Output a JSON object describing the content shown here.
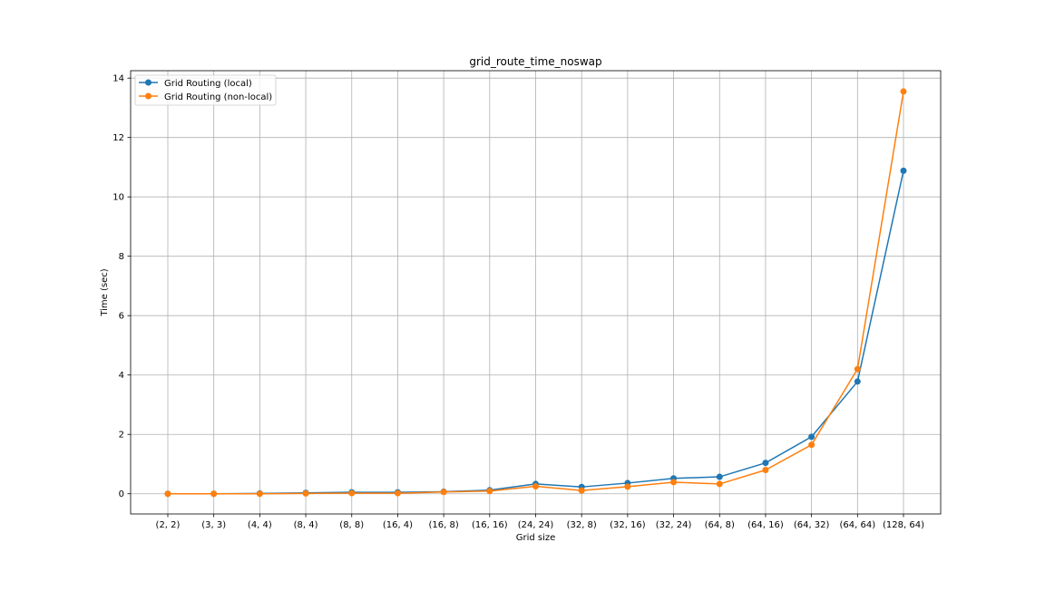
{
  "chart_data": {
    "type": "line",
    "title": "grid_route_time_noswap",
    "xlabel": "Grid size",
    "ylabel": "Time (sec)",
    "categories": [
      "(2, 2)",
      "(3, 3)",
      "(4, 4)",
      "(8, 4)",
      "(8, 8)",
      "(16, 4)",
      "(16, 8)",
      "(16, 16)",
      "(24, 24)",
      "(32, 8)",
      "(32, 16)",
      "(32, 24)",
      "(64, 8)",
      "(64, 16)",
      "(64, 32)",
      "(64, 64)",
      "(128, 64)"
    ],
    "ylim": [
      -0.68,
      14.25
    ],
    "yticks": [
      0,
      2,
      4,
      6,
      8,
      10,
      12,
      14
    ],
    "grid": true,
    "legend_position": "upper-left",
    "series": [
      {
        "name": "Grid Routing (local)",
        "color": "#1f77b4",
        "values": [
          0.0,
          0.0,
          0.01,
          0.03,
          0.05,
          0.05,
          0.07,
          0.12,
          0.33,
          0.23,
          0.36,
          0.52,
          0.57,
          1.04,
          1.92,
          3.78,
          10.88
        ]
      },
      {
        "name": "Grid Routing (non-local)",
        "color": "#ff7f0e",
        "values": [
          0.0,
          0.0,
          0.0,
          0.01,
          0.02,
          0.02,
          0.06,
          0.09,
          0.25,
          0.11,
          0.24,
          0.39,
          0.33,
          0.8,
          1.65,
          4.2,
          13.55
        ]
      }
    ]
  }
}
